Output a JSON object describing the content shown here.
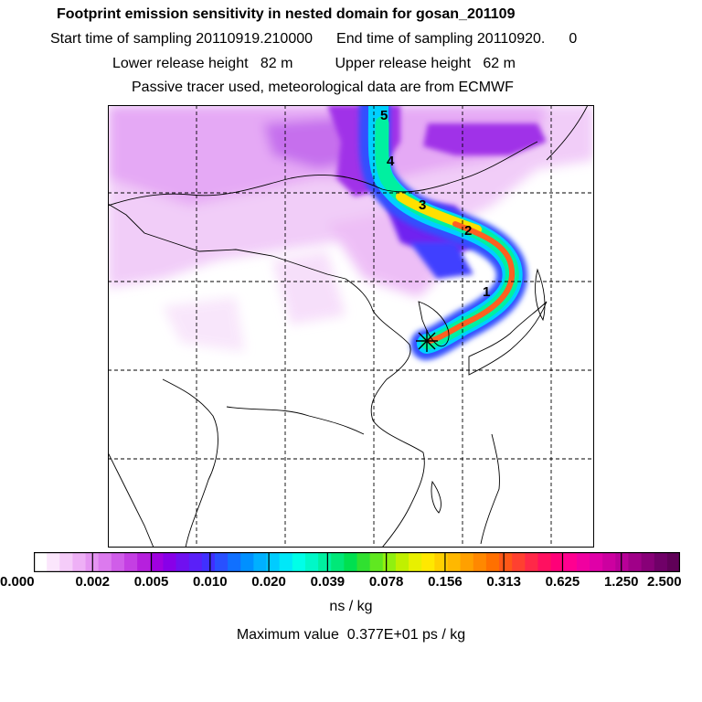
{
  "title": "Footprint emission sensitivity in nested domain for gosan_201109",
  "sampling": {
    "start_label": "Start time of sampling",
    "start_value": "20110919.210000",
    "end_label": "End time of sampling",
    "end_value": "20110920.",
    "end_suffix": "0"
  },
  "release": {
    "lower_label": "Lower release height",
    "lower_value": "82 m",
    "upper_label": "Upper release height",
    "upper_value": "62 m"
  },
  "info_line": "Passive tracer used, meteorological data are from ECMWF",
  "age_labels": [
    "1",
    "2",
    "3",
    "4",
    "5"
  ],
  "colorbar": {
    "ticks": [
      "0.000",
      "0.002",
      "0.005",
      "0.010",
      "0.020",
      "0.039",
      "0.078",
      "0.156",
      "0.313",
      "0.625",
      "1.250",
      "2.500"
    ],
    "colors": [
      "#ffffff",
      "#fbe6fc",
      "#f5ccf9",
      "#eeb0f6",
      "#e595f2",
      "#dc7aee",
      "#d05de9",
      "#c43fe3",
      "#b620dd",
      "#a000e0",
      "#8800e8",
      "#7010f0",
      "#5a20f8",
      "#4030ff",
      "#2850ff",
      "#1070ff",
      "#0090ff",
      "#00b0ff",
      "#00ccff",
      "#00e8f8",
      "#00ffe8",
      "#00f8c8",
      "#00f0a0",
      "#00e878",
      "#00e050",
      "#30e030",
      "#60e820",
      "#90f010",
      "#c0f000",
      "#e8f000",
      "#ffe800",
      "#ffd000",
      "#ffb800",
      "#ffa000",
      "#ff8800",
      "#ff7000",
      "#ff5818",
      "#ff4030",
      "#ff2848",
      "#ff1060",
      "#ff0078",
      "#ff0090",
      "#f000a0",
      "#e000a8",
      "#cc00a0",
      "#b80098",
      "#a00088",
      "#880078",
      "#700068",
      "#600058"
    ],
    "unit": "ns / kg"
  },
  "max_label": "Maximum value",
  "max_value": "0.377E+01 ps / kg",
  "station_marker": "asterisk"
}
